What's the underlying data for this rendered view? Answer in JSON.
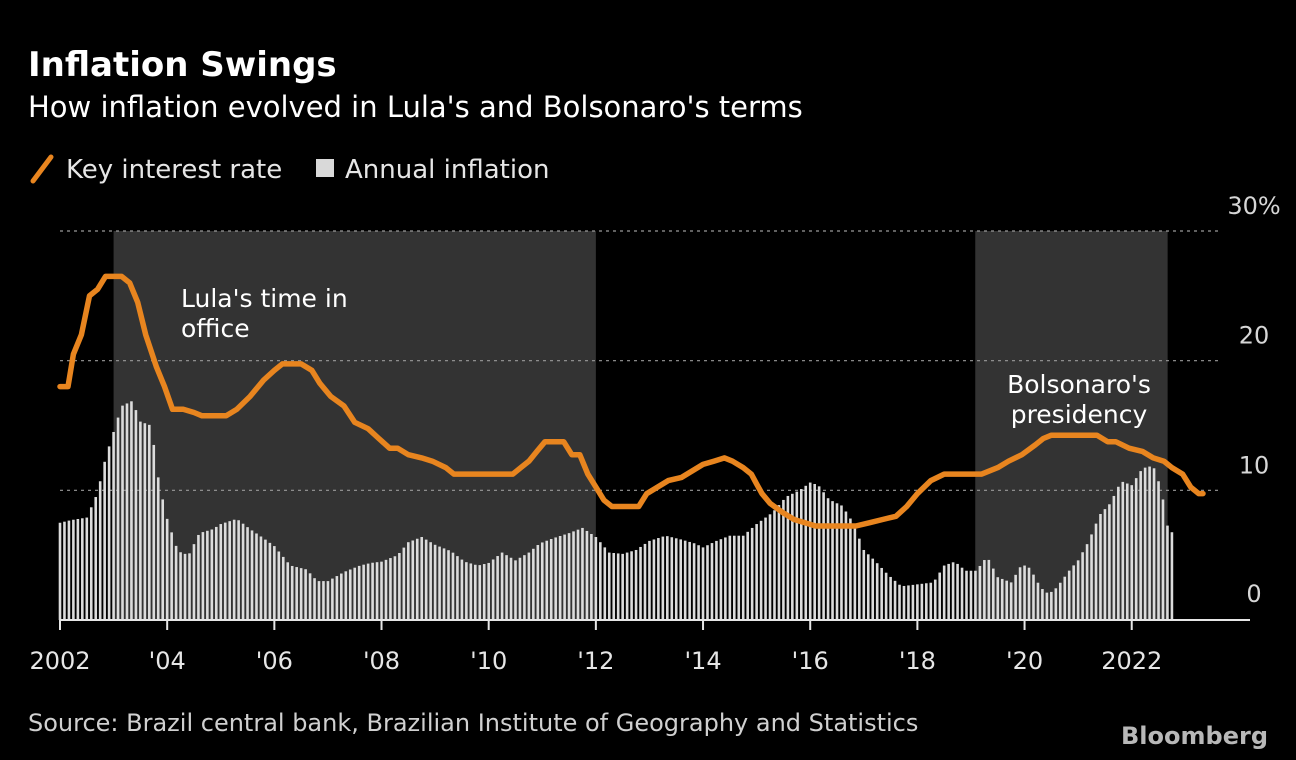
{
  "chart_data": {
    "type": "bar+line",
    "title": "Inflation Swings",
    "subtitle": "How inflation evolved in Lula's and Bolsonaro's terms",
    "legend": [
      {
        "label": "Key interest rate",
        "color": "#e8851f",
        "marker": "line"
      },
      {
        "label": "Annual inflation",
        "color": "#d9d9d9",
        "marker": "square"
      }
    ],
    "legend_position": "top-left",
    "y_axis": {
      "position": "right",
      "min": 0,
      "max": 30,
      "ticks": [
        0,
        10,
        20,
        30
      ],
      "tick_labels": [
        "0",
        "10",
        "20",
        "30%"
      ]
    },
    "x_axis": {
      "min": 2002.0,
      "max": 2023.33,
      "ticks": [
        2002,
        2004,
        2006,
        2008,
        2010,
        2012,
        2014,
        2016,
        2018,
        2020,
        2022
      ],
      "tick_labels": [
        "2002",
        "'04",
        "'06",
        "'08",
        "'10",
        "'12",
        "'14",
        "'16",
        "'18",
        "'20",
        "2022"
      ]
    },
    "grid": true,
    "shaded_periods": [
      {
        "start": 2003.0,
        "end": 2012.0,
        "label_lines": [
          "Lula's time in",
          "office"
        ]
      },
      {
        "start": 2019.08,
        "end": 2022.67,
        "label_lines": [
          "Bolsonaro's",
          "presidency"
        ]
      }
    ],
    "series": [
      {
        "name": "Key interest rate",
        "kind": "line",
        "points": [
          [
            2002.0,
            18.0
          ],
          [
            2002.15,
            18.0
          ],
          [
            2002.25,
            20.5
          ],
          [
            2002.4,
            22
          ],
          [
            2002.55,
            25
          ],
          [
            2002.7,
            25.5
          ],
          [
            2002.85,
            26.5
          ],
          [
            2003.15,
            26.5
          ],
          [
            2003.3,
            26
          ],
          [
            2003.45,
            24.5
          ],
          [
            2003.6,
            22
          ],
          [
            2003.8,
            19.5
          ],
          [
            2003.95,
            18
          ],
          [
            2004.1,
            16.25
          ],
          [
            2004.3,
            16.25
          ],
          [
            2004.5,
            16
          ],
          [
            2004.65,
            15.75
          ],
          [
            2004.9,
            15.75
          ],
          [
            2005.1,
            15.75
          ],
          [
            2005.3,
            16.25
          ],
          [
            2005.55,
            17.25
          ],
          [
            2005.8,
            18.5
          ],
          [
            2006.0,
            19.25
          ],
          [
            2006.15,
            19.75
          ],
          [
            2006.5,
            19.75
          ],
          [
            2006.7,
            19.25
          ],
          [
            2006.85,
            18.25
          ],
          [
            2007.05,
            17.25
          ],
          [
            2007.3,
            16.5
          ],
          [
            2007.5,
            15.25
          ],
          [
            2007.75,
            14.75
          ],
          [
            2007.95,
            14
          ],
          [
            2008.15,
            13.25
          ],
          [
            2008.3,
            13.25
          ],
          [
            2008.5,
            12.75
          ],
          [
            2008.75,
            12.5
          ],
          [
            2008.95,
            12.25
          ],
          [
            2009.2,
            11.75
          ],
          [
            2009.35,
            11.25
          ],
          [
            2009.55,
            11.25
          ],
          [
            2010.25,
            11.25
          ],
          [
            2010.45,
            11.25
          ],
          [
            2010.6,
            11.75
          ],
          [
            2010.75,
            12.25
          ],
          [
            2010.9,
            13
          ],
          [
            2011.05,
            13.75
          ],
          [
            2011.2,
            13.75
          ],
          [
            2011.4,
            13.75
          ],
          [
            2011.55,
            12.75
          ],
          [
            2011.7,
            12.75
          ],
          [
            2011.85,
            11.25
          ],
          [
            2012.0,
            10.25
          ],
          [
            2012.15,
            9.25
          ],
          [
            2012.3,
            8.75
          ],
          [
            2012.55,
            8.75
          ],
          [
            2012.65,
            8.75
          ],
          [
            2012.8,
            8.75
          ],
          [
            2012.95,
            9.75
          ],
          [
            2013.15,
            10.25
          ],
          [
            2013.35,
            10.75
          ],
          [
            2013.6,
            11.0
          ],
          [
            2013.8,
            11.5
          ],
          [
            2014.0,
            12.0
          ],
          [
            2014.2,
            12.25
          ],
          [
            2014.4,
            12.5
          ],
          [
            2014.55,
            12.25
          ],
          [
            2014.75,
            11.75
          ],
          [
            2014.9,
            11.25
          ],
          [
            2015.0,
            10.5
          ],
          [
            2015.1,
            9.75
          ],
          [
            2015.25,
            9.0
          ],
          [
            2015.5,
            8.25
          ],
          [
            2015.7,
            7.75
          ],
          [
            2015.9,
            7.5
          ],
          [
            2016.1,
            7.25
          ],
          [
            2016.3,
            7.25
          ],
          [
            2016.6,
            7.25
          ],
          [
            2016.85,
            7.25
          ],
          [
            2017.1,
            7.5
          ],
          [
            2017.35,
            7.75
          ],
          [
            2017.6,
            8.0
          ],
          [
            2017.8,
            8.75
          ],
          [
            2018.0,
            9.75
          ],
          [
            2018.25,
            10.75
          ],
          [
            2018.5,
            11.25
          ],
          [
            2018.8,
            11.25
          ],
          [
            2019.0,
            11.25
          ],
          [
            2019.2,
            11.25
          ],
          [
            2019.5,
            11.75
          ],
          [
            2019.7,
            12.25
          ],
          [
            2019.95,
            12.75
          ],
          [
            2020.2,
            13.5
          ],
          [
            2020.35,
            14
          ],
          [
            2020.5,
            14.25
          ],
          [
            2020.7,
            14.25
          ],
          [
            2020.9,
            14.25
          ],
          [
            2021.1,
            14.25
          ],
          [
            2021.35,
            14.25
          ],
          [
            2021.55,
            13.75
          ],
          [
            2021.7,
            13.75
          ],
          [
            2021.95,
            13.25
          ],
          [
            2022.2,
            13
          ],
          [
            2022.4,
            12.5
          ],
          [
            2022.6,
            12.25
          ],
          [
            2022.75,
            11.75
          ],
          [
            2022.95,
            11.25
          ],
          [
            2023.1,
            10.25
          ],
          [
            2023.25,
            9.75
          ],
          [
            2023.33,
            9.75
          ]
        ]
      }
    ]
  },
  "source": "Source: Brazil central bank, Brazilian Institute of Geography and Statistics",
  "brand": "Bloomberg"
}
